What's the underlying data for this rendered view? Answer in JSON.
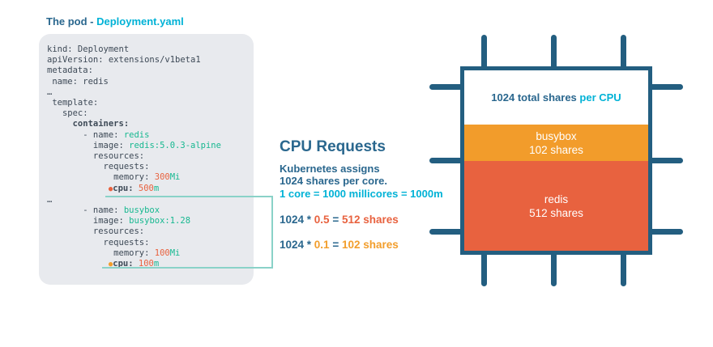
{
  "colors": {
    "navy": "#2a678e",
    "cyan": "#00b2d6",
    "green": "#17b890",
    "coral": "#e8623f",
    "amber": "#f29e2c",
    "chipBorder": "#235e80",
    "connector": "#8ad2c8",
    "codeBg": "#e8eaee",
    "codeText": "#3d4956"
  },
  "podPanel": {
    "title_prefix": "The pod - ",
    "title_file": "Deployment.yaml"
  },
  "code": {
    "lines": [
      [
        {
          "t": "kind: Deployment"
        }
      ],
      [
        {
          "t": "apiVersion: extensions/v1beta1"
        }
      ],
      [
        {
          "t": "metadata:"
        }
      ],
      [
        {
          "t": " name: redis"
        }
      ],
      [
        {
          "t": "…"
        }
      ],
      [
        {
          "t": " template:"
        }
      ],
      [
        {
          "t": "   spec:"
        }
      ],
      [
        {
          "t": "     containers:",
          "c": "b"
        }
      ],
      [
        {
          "t": "       - name: "
        },
        {
          "t": "redis",
          "c": "g"
        }
      ],
      [
        {
          "t": "         image: "
        },
        {
          "t": "redis:5.0.3-alpine",
          "c": "g"
        }
      ],
      [
        {
          "t": "         resources:"
        }
      ],
      [
        {
          "t": "           requests:"
        }
      ],
      [
        {
          "t": "             memory: "
        },
        {
          "t": "300",
          "c": "o"
        },
        {
          "t": "Mi",
          "c": "g"
        }
      ],
      [
        {
          "t": "            "
        },
        {
          "t": "●",
          "c": "br"
        },
        {
          "t": "cpu: ",
          "c": "b"
        },
        {
          "t": "500",
          "c": "o"
        },
        {
          "t": "m",
          "c": "g"
        }
      ],
      [
        {
          "t": "…"
        }
      ],
      [
        {
          "t": "       - name: "
        },
        {
          "t": "busybox",
          "c": "g"
        }
      ],
      [
        {
          "t": "         image: "
        },
        {
          "t": "busybox:1.28",
          "c": "g"
        }
      ],
      [
        {
          "t": "         resources:"
        }
      ],
      [
        {
          "t": "           requests:"
        }
      ],
      [
        {
          "t": "             memory: "
        },
        {
          "t": "100",
          "c": "o"
        },
        {
          "t": "Mi",
          "c": "g"
        }
      ],
      [
        {
          "t": "            "
        },
        {
          "t": "●",
          "c": "bb"
        },
        {
          "t": "cpu: ",
          "c": "b"
        },
        {
          "t": "100",
          "c": "o"
        },
        {
          "t": "m",
          "c": "g"
        }
      ]
    ]
  },
  "middle": {
    "title": "CPU Requests",
    "desc_line1": "Kubernetes assigns",
    "desc_line2": "1024 shares per core.",
    "desc_line3": "1 core = 1000 millicores = 1000m",
    "formulas": [
      {
        "prefix": "1024 * ",
        "factor": "0.5",
        "equals": " = ",
        "result": "512 shares",
        "tone": "coral"
      },
      {
        "prefix": "1024 * ",
        "factor": "0.1",
        "equals": " = ",
        "result": "102 shares",
        "tone": "amber"
      }
    ]
  },
  "chip": {
    "label_main": "1024 total shares",
    "label_accent": " per CPU",
    "bands": [
      {
        "name": "busybox",
        "shares": "102 shares",
        "color": "#f29c2b"
      },
      {
        "name": "redis",
        "shares": "512 shares",
        "color": "#e8623f"
      }
    ]
  }
}
